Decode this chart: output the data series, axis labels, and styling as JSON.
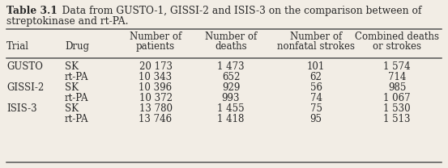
{
  "title_bold": "Table 3.1",
  "title_rest": "   Data from GUSTO-1, GISSI-2 and ISIS-3 on the comparison between of\n             streptokinase and rt-PA.",
  "header1": [
    "",
    "",
    "Number of",
    "Number of",
    "Number of",
    "Combined deaths"
  ],
  "header2": [
    "Trial",
    "Drug",
    "patients",
    "deaths",
    "nonfatal strokes",
    "or strokes"
  ],
  "rows": [
    [
      "GUSTO",
      "SK",
      "20 173",
      "1 473",
      "101",
      "1 574"
    ],
    [
      "",
      "rt-PA",
      "10 343",
      "652",
      "62",
      "714"
    ],
    [
      "GISSI-2",
      "SK",
      "10 396",
      "929",
      "56",
      "985"
    ],
    [
      "",
      "rt-PA",
      "10 372",
      "993",
      "74",
      "1 067"
    ],
    [
      "ISIS-3",
      "SK",
      "13 780",
      "1 455",
      "75",
      "1 530"
    ],
    [
      "",
      "rt-PA",
      "13 746",
      "1 418",
      "95",
      "1 513"
    ]
  ],
  "col_align": [
    "left",
    "left",
    "center",
    "center",
    "center",
    "center"
  ],
  "bg_color": "#f2ede5",
  "text_color": "#2a2a2a",
  "line_color": "#555555",
  "font_size": 8.5,
  "title_font_size": 8.8,
  "fig_width": 5.53,
  "fig_height": 2.08,
  "dpi": 100
}
